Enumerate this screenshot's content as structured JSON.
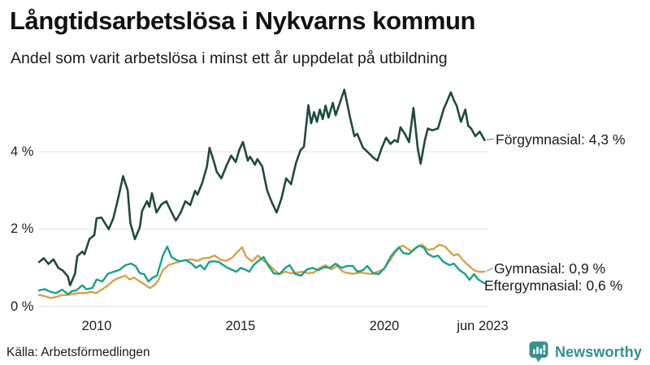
{
  "header": {
    "title": "Långtidsarbetslösa i Nykvarns kommun",
    "subtitle": "Andel som varit arbetslösa i minst ett år uppdelat på utbildning"
  },
  "footer": {
    "source": "Källa: Arbetsförmedlingen",
    "brand": "Newsworthy"
  },
  "colors": {
    "forgymnasial": "#1e4a40",
    "gymnasial": "#d8a147",
    "eftergymnasial": "#18a08e",
    "gridline": "#e9e9ec",
    "connector": "#8f8f8f",
    "brand_teal": "#35918e"
  },
  "chart_data": {
    "type": "line",
    "title": "Långtidsarbetslösa i Nykvarns kommun",
    "subtitle": "Andel som varit arbetslösa i minst ett år uppdelat på utbildning",
    "unit": "%",
    "grid": "horizontal-only",
    "legend_position": "right-end-labels",
    "x_axis": {
      "range": [
        2008.0,
        2023.5
      ],
      "ticks": [
        {
          "value": 2010,
          "label": "2010"
        },
        {
          "value": 2015,
          "label": "2015"
        },
        {
          "value": 2020,
          "label": "2020"
        },
        {
          "value": 2023.42,
          "label": "jun 2023"
        }
      ]
    },
    "y_axis": {
      "range": [
        0,
        5.8
      ],
      "ticks": [
        {
          "value": 4,
          "label": "4 %"
        },
        {
          "value": 2,
          "label": "2 %"
        },
        {
          "value": 0,
          "label": "0 %"
        }
      ]
    },
    "series": [
      {
        "name": "Förgymnasial",
        "label": "Förgymnasial: 4,3 %",
        "end_value": "4,3 %",
        "color": "#1e4a40",
        "points": [
          [
            2008.0,
            1.15
          ],
          [
            2008.17,
            1.25
          ],
          [
            2008.33,
            1.1
          ],
          [
            2008.5,
            1.22
          ],
          [
            2008.67,
            1.0
          ],
          [
            2008.83,
            0.93
          ],
          [
            2009.0,
            0.78
          ],
          [
            2009.08,
            0.55
          ],
          [
            2009.25,
            0.85
          ],
          [
            2009.33,
            1.3
          ],
          [
            2009.5,
            1.42
          ],
          [
            2009.58,
            1.35
          ],
          [
            2009.75,
            1.74
          ],
          [
            2009.92,
            1.85
          ],
          [
            2010.0,
            2.28
          ],
          [
            2010.17,
            2.3
          ],
          [
            2010.25,
            2.2
          ],
          [
            2010.42,
            2.0
          ],
          [
            2010.58,
            2.28
          ],
          [
            2010.75,
            2.8
          ],
          [
            2010.92,
            3.37
          ],
          [
            2011.08,
            3.0
          ],
          [
            2011.17,
            2.16
          ],
          [
            2011.33,
            1.74
          ],
          [
            2011.5,
            2.05
          ],
          [
            2011.58,
            2.47
          ],
          [
            2011.75,
            2.72
          ],
          [
            2011.83,
            2.58
          ],
          [
            2011.92,
            2.93
          ],
          [
            2012.08,
            2.43
          ],
          [
            2012.25,
            2.64
          ],
          [
            2012.42,
            2.72
          ],
          [
            2012.58,
            2.47
          ],
          [
            2012.75,
            2.22
          ],
          [
            2012.92,
            2.43
          ],
          [
            2013.08,
            2.72
          ],
          [
            2013.25,
            2.62
          ],
          [
            2013.42,
            2.99
          ],
          [
            2013.5,
            2.89
          ],
          [
            2013.67,
            3.2
          ],
          [
            2013.83,
            3.62
          ],
          [
            2013.92,
            4.1
          ],
          [
            2014.08,
            3.73
          ],
          [
            2014.17,
            3.48
          ],
          [
            2014.33,
            3.31
          ],
          [
            2014.5,
            3.62
          ],
          [
            2014.67,
            3.9
          ],
          [
            2014.83,
            3.73
          ],
          [
            2014.95,
            4.04
          ],
          [
            2015.08,
            4.25
          ],
          [
            2015.25,
            3.77
          ],
          [
            2015.33,
            3.87
          ],
          [
            2015.5,
            3.66
          ],
          [
            2015.58,
            3.81
          ],
          [
            2015.75,
            3.62
          ],
          [
            2015.92,
            3.0
          ],
          [
            2016.08,
            2.7
          ],
          [
            2016.25,
            2.43
          ],
          [
            2016.42,
            2.8
          ],
          [
            2016.58,
            3.31
          ],
          [
            2016.75,
            3.16
          ],
          [
            2016.92,
            3.7
          ],
          [
            2017.08,
            4.04
          ],
          [
            2017.2,
            4.13
          ],
          [
            2017.35,
            5.2
          ],
          [
            2017.45,
            4.73
          ],
          [
            2017.55,
            5.02
          ],
          [
            2017.65,
            4.77
          ],
          [
            2017.75,
            5.09
          ],
          [
            2017.85,
            4.84
          ],
          [
            2017.95,
            5.19
          ],
          [
            2018.05,
            4.88
          ],
          [
            2018.2,
            5.26
          ],
          [
            2018.3,
            4.94
          ],
          [
            2018.6,
            5.6
          ],
          [
            2018.8,
            4.88
          ],
          [
            2018.95,
            4.4
          ],
          [
            2019.05,
            4.46
          ],
          [
            2019.25,
            4.1
          ],
          [
            2019.4,
            4.0
          ],
          [
            2019.6,
            3.85
          ],
          [
            2019.75,
            3.77
          ],
          [
            2019.9,
            4.1
          ],
          [
            2020.05,
            4.36
          ],
          [
            2020.2,
            4.2
          ],
          [
            2020.35,
            4.3
          ],
          [
            2020.45,
            4.25
          ],
          [
            2020.55,
            4.63
          ],
          [
            2020.7,
            4.46
          ],
          [
            2020.85,
            4.25
          ],
          [
            2021.0,
            5.13
          ],
          [
            2021.15,
            4.08
          ],
          [
            2021.25,
            3.69
          ],
          [
            2021.4,
            4.3
          ],
          [
            2021.5,
            4.6
          ],
          [
            2021.65,
            4.55
          ],
          [
            2021.85,
            4.6
          ],
          [
            2022.05,
            5.1
          ],
          [
            2022.3,
            5.53
          ],
          [
            2022.42,
            5.3
          ],
          [
            2022.5,
            5.19
          ],
          [
            2022.65,
            4.77
          ],
          [
            2022.8,
            5.09
          ],
          [
            2022.9,
            4.67
          ],
          [
            2023.0,
            4.6
          ],
          [
            2023.15,
            4.4
          ],
          [
            2023.3,
            4.52
          ],
          [
            2023.47,
            4.3
          ]
        ]
      },
      {
        "name": "Gymnasial",
        "label": "Gymnasial: 0,9 %",
        "end_value": "0,9 %",
        "color": "#d8a147",
        "points": [
          [
            2008.0,
            0.3
          ],
          [
            2008.2,
            0.27
          ],
          [
            2008.4,
            0.22
          ],
          [
            2008.6,
            0.25
          ],
          [
            2008.8,
            0.3
          ],
          [
            2009.0,
            0.3
          ],
          [
            2009.2,
            0.33
          ],
          [
            2009.4,
            0.35
          ],
          [
            2009.6,
            0.35
          ],
          [
            2009.8,
            0.38
          ],
          [
            2010.0,
            0.35
          ],
          [
            2010.2,
            0.45
          ],
          [
            2010.4,
            0.55
          ],
          [
            2010.6,
            0.68
          ],
          [
            2010.8,
            0.75
          ],
          [
            2011.0,
            0.8
          ],
          [
            2011.15,
            0.7
          ],
          [
            2011.3,
            0.75
          ],
          [
            2011.5,
            0.65
          ],
          [
            2011.65,
            0.58
          ],
          [
            2011.85,
            0.48
          ],
          [
            2012.0,
            0.55
          ],
          [
            2012.15,
            0.69
          ],
          [
            2012.3,
            0.94
          ],
          [
            2012.5,
            1.07
          ],
          [
            2012.7,
            1.12
          ],
          [
            2012.9,
            1.17
          ],
          [
            2013.1,
            1.2
          ],
          [
            2013.3,
            1.22
          ],
          [
            2013.5,
            1.18
          ],
          [
            2013.7,
            1.25
          ],
          [
            2013.9,
            1.26
          ],
          [
            2014.1,
            1.32
          ],
          [
            2014.3,
            1.21
          ],
          [
            2014.5,
            1.18
          ],
          [
            2014.7,
            1.26
          ],
          [
            2014.9,
            1.42
          ],
          [
            2015.05,
            1.53
          ],
          [
            2015.2,
            1.28
          ],
          [
            2015.4,
            1.17
          ],
          [
            2015.6,
            1.32
          ],
          [
            2015.75,
            1.21
          ],
          [
            2015.95,
            1.11
          ],
          [
            2016.15,
            0.96
          ],
          [
            2016.35,
            0.84
          ],
          [
            2016.55,
            0.9
          ],
          [
            2016.75,
            0.86
          ],
          [
            2016.95,
            0.88
          ],
          [
            2017.15,
            0.9
          ],
          [
            2017.35,
            0.86
          ],
          [
            2017.55,
            0.88
          ],
          [
            2017.75,
            1.0
          ],
          [
            2017.95,
            1.07
          ],
          [
            2018.15,
            0.96
          ],
          [
            2018.35,
            1.05
          ],
          [
            2018.55,
            0.9
          ],
          [
            2018.75,
            0.86
          ],
          [
            2018.95,
            0.85
          ],
          [
            2019.15,
            0.88
          ],
          [
            2019.35,
            0.86
          ],
          [
            2019.55,
            0.84
          ],
          [
            2019.75,
            0.9
          ],
          [
            2019.95,
            0.96
          ],
          [
            2020.15,
            1.15
          ],
          [
            2020.35,
            1.38
          ],
          [
            2020.5,
            1.53
          ],
          [
            2020.65,
            1.57
          ],
          [
            2020.8,
            1.49
          ],
          [
            2020.95,
            1.42
          ],
          [
            2021.1,
            1.53
          ],
          [
            2021.3,
            1.6
          ],
          [
            2021.5,
            1.47
          ],
          [
            2021.7,
            1.49
          ],
          [
            2021.9,
            1.6
          ],
          [
            2022.1,
            1.55
          ],
          [
            2022.25,
            1.42
          ],
          [
            2022.4,
            1.32
          ],
          [
            2022.55,
            1.36
          ],
          [
            2022.7,
            1.21
          ],
          [
            2022.9,
            1.07
          ],
          [
            2023.1,
            0.94
          ],
          [
            2023.25,
            0.9
          ],
          [
            2023.47,
            0.9
          ]
        ]
      },
      {
        "name": "Eftergymnasial",
        "label": "Eftergymnasial: 0,6 %",
        "end_value": "0,6 %",
        "color": "#18a08e",
        "points": [
          [
            2008.0,
            0.42
          ],
          [
            2008.2,
            0.45
          ],
          [
            2008.4,
            0.38
          ],
          [
            2008.6,
            0.35
          ],
          [
            2008.8,
            0.44
          ],
          [
            2009.0,
            0.32
          ],
          [
            2009.15,
            0.4
          ],
          [
            2009.3,
            0.42
          ],
          [
            2009.5,
            0.55
          ],
          [
            2009.65,
            0.45
          ],
          [
            2009.85,
            0.48
          ],
          [
            2010.0,
            0.7
          ],
          [
            2010.2,
            0.65
          ],
          [
            2010.4,
            0.85
          ],
          [
            2010.6,
            0.9
          ],
          [
            2010.8,
            0.95
          ],
          [
            2011.0,
            1.07
          ],
          [
            2011.2,
            1.11
          ],
          [
            2011.35,
            1.05
          ],
          [
            2011.5,
            0.86
          ],
          [
            2011.65,
            0.84
          ],
          [
            2011.8,
            0.65
          ],
          [
            2011.95,
            0.75
          ],
          [
            2012.1,
            0.8
          ],
          [
            2012.3,
            1.32
          ],
          [
            2012.45,
            1.55
          ],
          [
            2012.6,
            1.28
          ],
          [
            2012.75,
            1.21
          ],
          [
            2012.9,
            1.17
          ],
          [
            2013.1,
            1.2
          ],
          [
            2013.3,
            1.11
          ],
          [
            2013.45,
            1.0
          ],
          [
            2013.6,
            1.07
          ],
          [
            2013.75,
            0.96
          ],
          [
            2013.9,
            1.15
          ],
          [
            2014.05,
            1.17
          ],
          [
            2014.25,
            1.15
          ],
          [
            2014.4,
            1.07
          ],
          [
            2014.55,
            1.0
          ],
          [
            2014.7,
            0.95
          ],
          [
            2014.85,
            0.9
          ],
          [
            2015.0,
            1.0
          ],
          [
            2015.15,
            0.96
          ],
          [
            2015.3,
            0.9
          ],
          [
            2015.45,
            1.07
          ],
          [
            2015.6,
            1.17
          ],
          [
            2015.8,
            1.28
          ],
          [
            2015.95,
            1.07
          ],
          [
            2016.15,
            0.86
          ],
          [
            2016.35,
            0.84
          ],
          [
            2016.55,
            1.0
          ],
          [
            2016.7,
            1.07
          ],
          [
            2016.9,
            0.84
          ],
          [
            2017.1,
            0.8
          ],
          [
            2017.3,
            0.96
          ],
          [
            2017.5,
            1.0
          ],
          [
            2017.7,
            0.94
          ],
          [
            2017.9,
            1.02
          ],
          [
            2018.1,
            1.0
          ],
          [
            2018.3,
            1.11
          ],
          [
            2018.5,
            1.0
          ],
          [
            2018.7,
            1.05
          ],
          [
            2018.9,
            1.05
          ],
          [
            2019.05,
            0.9
          ],
          [
            2019.25,
            0.94
          ],
          [
            2019.4,
            1.05
          ],
          [
            2019.6,
            0.86
          ],
          [
            2019.8,
            0.84
          ],
          [
            2020.0,
            1.0
          ],
          [
            2020.2,
            1.28
          ],
          [
            2020.35,
            1.42
          ],
          [
            2020.5,
            1.53
          ],
          [
            2020.65,
            1.38
          ],
          [
            2020.85,
            1.36
          ],
          [
            2021.0,
            1.47
          ],
          [
            2021.2,
            1.57
          ],
          [
            2021.35,
            1.53
          ],
          [
            2021.5,
            1.36
          ],
          [
            2021.7,
            1.28
          ],
          [
            2021.85,
            1.32
          ],
          [
            2022.05,
            1.15
          ],
          [
            2022.25,
            1.07
          ],
          [
            2022.4,
            1.11
          ],
          [
            2022.6,
            0.94
          ],
          [
            2022.8,
            0.84
          ],
          [
            2022.95,
            0.69
          ],
          [
            2023.1,
            0.84
          ],
          [
            2023.25,
            0.7
          ],
          [
            2023.47,
            0.6
          ]
        ]
      }
    ]
  }
}
